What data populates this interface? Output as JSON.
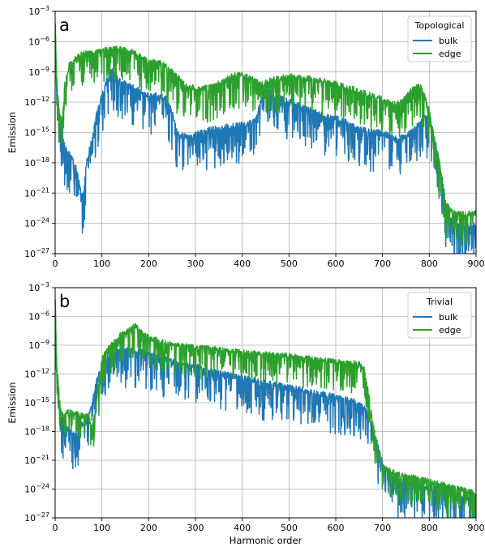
{
  "chart_data": [
    {
      "type": "line",
      "panel_label": "a",
      "legend_title": "Topological",
      "legend_position": "top-right",
      "xlabel": "",
      "ylabel": "Emission",
      "xlim": [
        0,
        900
      ],
      "ylim_log10": [
        -27,
        -3
      ],
      "y_scale": "log",
      "grid": true,
      "x_ticks": [
        "0",
        "100",
        "200",
        "300",
        "400",
        "500",
        "600",
        "700",
        "800",
        "900"
      ],
      "y_tick_exponents": [
        "−27",
        "−24",
        "−21",
        "−18",
        "−15",
        "−12",
        "−9",
        "−6",
        "−3"
      ],
      "series": [
        {
          "name": "bulk",
          "color": "#1f77b4",
          "x_log10_envelope": [
            [
              0,
              -5
            ],
            [
              2,
              -8.5
            ],
            [
              5,
              -12
            ],
            [
              10,
              -14
            ],
            [
              15,
              -15
            ],
            [
              20,
              -16.5
            ],
            [
              30,
              -17.3
            ],
            [
              40,
              -18
            ],
            [
              50,
              -19.5
            ],
            [
              55,
              -21
            ],
            [
              60,
              -21.5
            ],
            [
              65,
              -19
            ],
            [
              70,
              -17.5
            ],
            [
              80,
              -15.5
            ],
            [
              90,
              -13
            ],
            [
              100,
              -11.5
            ],
            [
              110,
              -10
            ],
            [
              120,
              -9
            ],
            [
              130,
              -9.5
            ],
            [
              140,
              -10
            ],
            [
              160,
              -10.5
            ],
            [
              180,
              -11
            ],
            [
              200,
              -11.5
            ],
            [
              220,
              -11.5
            ],
            [
              240,
              -11.8
            ],
            [
              250,
              -13
            ],
            [
              260,
              -15
            ],
            [
              270,
              -15.5
            ],
            [
              290,
              -15.5
            ],
            [
              320,
              -15
            ],
            [
              350,
              -14.7
            ],
            [
              380,
              -14.5
            ],
            [
              410,
              -14.2
            ],
            [
              430,
              -13.8
            ],
            [
              440,
              -12
            ],
            [
              450,
              -11
            ],
            [
              470,
              -11.5
            ],
            [
              500,
              -12
            ],
            [
              540,
              -12.8
            ],
            [
              580,
              -13.5
            ],
            [
              620,
              -14
            ],
            [
              650,
              -14.8
            ],
            [
              680,
              -15
            ],
            [
              700,
              -15.2
            ],
            [
              730,
              -15.7
            ],
            [
              750,
              -15.5
            ],
            [
              780,
              -14.3
            ],
            [
              790,
              -13.5
            ],
            [
              800,
              -13.7
            ],
            [
              815,
              -16.5
            ],
            [
              825,
              -19
            ],
            [
              830,
              -21
            ],
            [
              835,
              -23
            ],
            [
              850,
              -24
            ],
            [
              870,
              -24.5
            ],
            [
              900,
              -24.3
            ]
          ],
          "noise_log10": 1.2
        },
        {
          "name": "edge",
          "color": "#2ca02c",
          "x_log10_envelope": [
            [
              0,
              -5
            ],
            [
              2,
              -8
            ],
            [
              5,
              -11
            ],
            [
              10,
              -13.5
            ],
            [
              15,
              -14
            ],
            [
              20,
              -10.5
            ],
            [
              30,
              -8.5
            ],
            [
              40,
              -8
            ],
            [
              50,
              -7.5
            ],
            [
              60,
              -7.3
            ],
            [
              80,
              -7.2
            ],
            [
              100,
              -7
            ],
            [
              120,
              -6.8
            ],
            [
              140,
              -6.8
            ],
            [
              160,
              -7
            ],
            [
              180,
              -7.5
            ],
            [
              200,
              -8
            ],
            [
              230,
              -8.3
            ],
            [
              260,
              -9.5
            ],
            [
              280,
              -10.5
            ],
            [
              310,
              -10.8
            ],
            [
              340,
              -10.5
            ],
            [
              380,
              -9.5
            ],
            [
              400,
              -9.3
            ],
            [
              420,
              -9.8
            ],
            [
              440,
              -10.3
            ],
            [
              470,
              -9.8
            ],
            [
              500,
              -9.5
            ],
            [
              550,
              -9.8
            ],
            [
              600,
              -10.3
            ],
            [
              650,
              -11
            ],
            [
              700,
              -11.8
            ],
            [
              720,
              -12.3
            ],
            [
              740,
              -12.1
            ],
            [
              760,
              -11
            ],
            [
              780,
              -10.5
            ],
            [
              790,
              -11.5
            ],
            [
              800,
              -13
            ],
            [
              815,
              -16.5
            ],
            [
              825,
              -19
            ],
            [
              835,
              -22
            ],
            [
              850,
              -23
            ],
            [
              870,
              -23.2
            ],
            [
              900,
              -23.1
            ]
          ],
          "noise_log10": 1.1
        }
      ]
    },
    {
      "type": "line",
      "panel_label": "b",
      "legend_title": "Trivial",
      "legend_position": "top-right",
      "xlabel": "Harmonic order",
      "ylabel": "Emission",
      "xlim": [
        0,
        900
      ],
      "ylim_log10": [
        -27,
        -3
      ],
      "y_scale": "log",
      "grid": true,
      "x_ticks": [
        "0",
        "100",
        "200",
        "300",
        "400",
        "500",
        "600",
        "700",
        "800",
        "900"
      ],
      "y_tick_exponents": [
        "−27",
        "−24",
        "−21",
        "−18",
        "−15",
        "−12",
        "−9",
        "−6",
        "−3"
      ],
      "series": [
        {
          "name": "bulk",
          "color": "#1f77b4",
          "x_log10_envelope": [
            [
              0,
              -5
            ],
            [
              2,
              -9
            ],
            [
              5,
              -13
            ],
            [
              10,
              -16
            ],
            [
              20,
              -17.3
            ],
            [
              30,
              -18
            ],
            [
              40,
              -18.5
            ],
            [
              50,
              -18
            ],
            [
              60,
              -17.3
            ],
            [
              70,
              -16.8
            ],
            [
              80,
              -15
            ],
            [
              90,
              -12.5
            ],
            [
              100,
              -11.5
            ],
            [
              110,
              -10.5
            ],
            [
              130,
              -9.8
            ],
            [
              160,
              -9.5
            ],
            [
              180,
              -9.8
            ],
            [
              200,
              -10
            ],
            [
              250,
              -10.8
            ],
            [
              300,
              -11.3
            ],
            [
              350,
              -12
            ],
            [
              400,
              -12.5
            ],
            [
              450,
              -13
            ],
            [
              500,
              -13.5
            ],
            [
              550,
              -14
            ],
            [
              600,
              -14.5
            ],
            [
              640,
              -15
            ],
            [
              660,
              -15.5
            ],
            [
              670,
              -16.5
            ],
            [
              680,
              -18
            ],
            [
              690,
              -19.5
            ],
            [
              700,
              -21.5
            ],
            [
              720,
              -23
            ],
            [
              750,
              -23.5
            ],
            [
              800,
              -24
            ],
            [
              850,
              -24.5
            ],
            [
              880,
              -25
            ],
            [
              900,
              -25.8
            ]
          ],
          "noise_log10": 1.2
        },
        {
          "name": "edge",
          "color": "#2ca02c",
          "x_log10_envelope": [
            [
              0,
              -5
            ],
            [
              2,
              -9
            ],
            [
              5,
              -12
            ],
            [
              10,
              -15
            ],
            [
              15,
              -16.3
            ],
            [
              30,
              -16
            ],
            [
              50,
              -16.3
            ],
            [
              70,
              -16.5
            ],
            [
              80,
              -17.5
            ],
            [
              85,
              -16
            ],
            [
              95,
              -12.5
            ],
            [
              100,
              -10.5
            ],
            [
              110,
              -9.5
            ],
            [
              120,
              -9
            ],
            [
              140,
              -8
            ],
            [
              160,
              -7.5
            ],
            [
              170,
              -7
            ],
            [
              180,
              -7.5
            ],
            [
              200,
              -8.3
            ],
            [
              250,
              -9
            ],
            [
              300,
              -9.3
            ],
            [
              350,
              -9.5
            ],
            [
              400,
              -9.8
            ],
            [
              450,
              -10
            ],
            [
              500,
              -10.2
            ],
            [
              550,
              -10.5
            ],
            [
              600,
              -10.8
            ],
            [
              650,
              -11
            ],
            [
              660,
              -11.5
            ],
            [
              670,
              -14
            ],
            [
              680,
              -17.5
            ],
            [
              690,
              -20
            ],
            [
              700,
              -21.8
            ],
            [
              730,
              -22.5
            ],
            [
              780,
              -23
            ],
            [
              820,
              -23.5
            ],
            [
              860,
              -24
            ],
            [
              900,
              -24.5
            ]
          ],
          "noise_log10": 1.0
        }
      ]
    }
  ]
}
